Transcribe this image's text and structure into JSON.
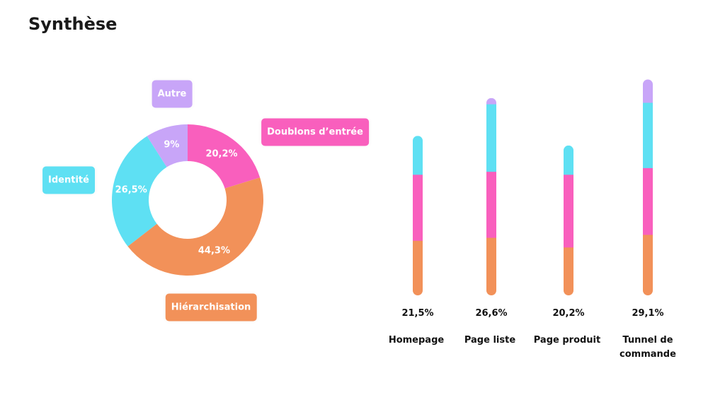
{
  "title": "Synthèse",
  "chart_data": [
    {
      "type": "donut",
      "categories": [
        "Doublons d’entrée",
        "Hiérarchisation",
        "Identité",
        "Autre"
      ],
      "values": [
        20.2,
        44.3,
        26.5,
        9
      ],
      "value_labels": [
        "20,2%",
        "44,3%",
        "26,5%",
        "9%"
      ],
      "colors": [
        "#f95fbd",
        "#f29159",
        "#5ee0f3",
        "#c8a5f8"
      ]
    },
    {
      "type": "stacked_bar",
      "categories": [
        "Homepage",
        "Page liste",
        "Page produit",
        "Tunnel de commande"
      ],
      "totals": [
        21.5,
        26.6,
        20.2,
        29.1
      ],
      "total_labels": [
        "21,5%",
        "26,6%",
        "20,2%",
        "29,1%"
      ],
      "series": [
        {
          "color": "#f29159",
          "values": [
            7.4,
            7.8,
            6.5,
            8.2
          ]
        },
        {
          "color": "#f95fbd",
          "values": [
            8.9,
            8.9,
            9.8,
            9.0
          ]
        },
        {
          "color": "#5ee0f3",
          "values": [
            5.2,
            9.1,
            3.9,
            8.8
          ]
        },
        {
          "color": "#c8a5f8",
          "values": [
            null,
            0.8,
            null,
            3.1
          ]
        }
      ]
    }
  ]
}
